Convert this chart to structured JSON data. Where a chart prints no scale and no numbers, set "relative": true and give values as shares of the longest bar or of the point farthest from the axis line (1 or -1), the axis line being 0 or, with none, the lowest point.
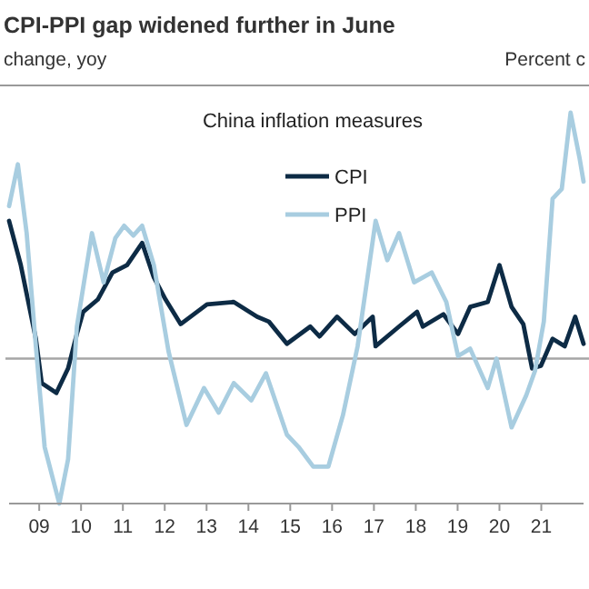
{
  "chart_data": {
    "type": "line",
    "title": "CPI-PPI gap widened further in June",
    "subtitle": "China inflation measures",
    "ylabel": "change, yoy",
    "y2label": "Percent c",
    "relative": true,
    "legend": "top",
    "grid": false,
    "marker": "none",
    "line_style": "solid",
    "xlim": [
      2008.28,
      2022.01
    ],
    "xticks": [
      {
        "value": 2009,
        "label": "09"
      },
      {
        "value": 2010,
        "label": "10"
      },
      {
        "value": 2011,
        "label": "11"
      },
      {
        "value": 2012,
        "label": "12"
      },
      {
        "value": 2013,
        "label": "13"
      },
      {
        "value": 2014,
        "label": "14"
      },
      {
        "value": 2015,
        "label": "15"
      },
      {
        "value": 2016,
        "label": "16"
      },
      {
        "value": 2017,
        "label": "17"
      },
      {
        "value": 2018,
        "label": "18"
      },
      {
        "value": 2019,
        "label": "19"
      },
      {
        "value": 2020,
        "label": "20"
      },
      {
        "value": 2021,
        "label": "21"
      }
    ],
    "ref_lines": [
      {
        "axis": "y",
        "value": 0,
        "color": "#a6a6a6"
      }
    ],
    "series": [
      {
        "name": "CPI",
        "color": "#0d2b45",
        "x": [
          2008.28,
          2008.56,
          2008.92,
          2009.06,
          2009.41,
          2009.69,
          2009.9,
          2010.05,
          2010.4,
          2010.75,
          2011.1,
          2011.46,
          2011.74,
          2012.02,
          2012.38,
          2013.01,
          2013.65,
          2014.21,
          2014.49,
          2014.92,
          2015.48,
          2015.7,
          2016.12,
          2016.54,
          2016.97,
          2017.04,
          2017.6,
          2018.03,
          2018.17,
          2018.66,
          2019.01,
          2019.3,
          2019.72,
          2020.0,
          2020.29,
          2020.57,
          2020.78,
          2020.99,
          2021.27,
          2021.56,
          2021.81,
          2022.01
        ],
        "values": [
          0.56,
          0.38,
          0.08,
          -0.1,
          -0.14,
          -0.04,
          0.1,
          0.19,
          0.24,
          0.35,
          0.38,
          0.47,
          0.33,
          0.24,
          0.14,
          0.22,
          0.23,
          0.17,
          0.15,
          0.06,
          0.13,
          0.09,
          0.17,
          0.1,
          0.17,
          0.05,
          0.13,
          0.19,
          0.13,
          0.18,
          0.1,
          0.21,
          0.23,
          0.38,
          0.21,
          0.14,
          -0.04,
          -0.03,
          0.08,
          0.05,
          0.17,
          0.06
        ]
      },
      {
        "name": "PPI",
        "color": "#a8cde0",
        "x": [
          2008.28,
          2008.49,
          2008.7,
          2008.92,
          2009.13,
          2009.48,
          2009.69,
          2009.9,
          2010.26,
          2010.54,
          2010.82,
          2011.03,
          2011.25,
          2011.46,
          2011.74,
          2012.09,
          2012.52,
          2012.94,
          2013.29,
          2013.65,
          2014.07,
          2014.42,
          2014.92,
          2015.2,
          2015.55,
          2015.91,
          2016.26,
          2016.61,
          2017.04,
          2017.32,
          2017.6,
          2017.96,
          2018.38,
          2018.73,
          2019.01,
          2019.3,
          2019.72,
          2019.93,
          2020.29,
          2020.64,
          2020.85,
          2021.06,
          2021.27,
          2021.49,
          2021.7,
          2021.91,
          2022.01
        ],
        "values": [
          0.62,
          0.79,
          0.51,
          0.05,
          -0.36,
          -0.59,
          -0.41,
          0.13,
          0.51,
          0.31,
          0.49,
          0.54,
          0.5,
          0.54,
          0.38,
          0.03,
          -0.27,
          -0.12,
          -0.22,
          -0.1,
          -0.17,
          -0.06,
          -0.31,
          -0.36,
          -0.44,
          -0.44,
          -0.23,
          0.05,
          0.56,
          0.4,
          0.51,
          0.31,
          0.35,
          0.23,
          0.01,
          0.04,
          -0.12,
          0,
          -0.28,
          -0.15,
          -0.05,
          0.15,
          0.65,
          0.69,
          1,
          0.82,
          0.72
        ]
      }
    ]
  }
}
